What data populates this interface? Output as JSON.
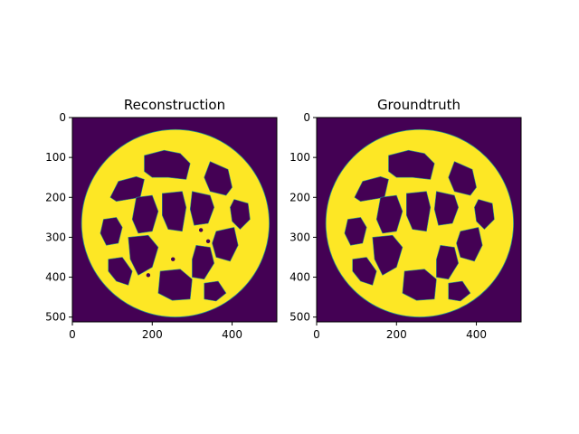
{
  "colors": {
    "background": "#440154",
    "foreground": "#fde725",
    "edge": "#21918c",
    "axis": "#000000"
  },
  "chart_data": [
    {
      "type": "heatmap",
      "title": "Reconstruction",
      "image_size": [
        512,
        512
      ],
      "xlim": [
        0,
        512
      ],
      "ylim": [
        512,
        0
      ],
      "xticks": [
        0,
        200,
        400
      ],
      "yticks": [
        0,
        100,
        200,
        300,
        400,
        500
      ],
      "colormap": "viridis",
      "values_shown": [
        0,
        1
      ],
      "object": {
        "shape": "wheel",
        "center": [
          258,
          265
        ],
        "outer_radius": 235,
        "rim_inner_radius": 205,
        "cells": [
          {
            "name": "cell-top-left",
            "points": [
              [
                95,
                200
              ],
              [
                115,
                160
              ],
              [
                160,
                148
              ],
              [
                180,
                155
              ],
              [
                170,
                200
              ],
              [
                140,
                205
              ],
              [
                110,
                210
              ]
            ]
          },
          {
            "name": "cell-top",
            "points": [
              [
                180,
                95
              ],
              [
                230,
                82
              ],
              [
                270,
                90
              ],
              [
                295,
                115
              ],
              [
                285,
                155
              ],
              [
                240,
                150
              ],
              [
                200,
                150
              ],
              [
                180,
                135
              ]
            ]
          },
          {
            "name": "cell-top-right",
            "points": [
              [
                345,
                110
              ],
              [
                390,
                130
              ],
              [
                400,
                175
              ],
              [
                385,
                195
              ],
              [
                345,
                185
              ],
              [
                330,
                150
              ]
            ]
          },
          {
            "name": "cell-right-top",
            "points": [
              [
                405,
                205
              ],
              [
                440,
                215
              ],
              [
                445,
                255
              ],
              [
                420,
                280
              ],
              [
                400,
                260
              ],
              [
                395,
                225
              ]
            ]
          },
          {
            "name": "cell-left",
            "points": [
              [
                78,
                255
              ],
              [
                110,
                250
              ],
              [
                125,
                275
              ],
              [
                115,
                315
              ],
              [
                85,
                320
              ],
              [
                70,
                290
              ]
            ]
          },
          {
            "name": "cell-center-left",
            "points": [
              [
                160,
                200
              ],
              [
                200,
                195
              ],
              [
                215,
                235
              ],
              [
                200,
                285
              ],
              [
                165,
                290
              ],
              [
                150,
                255
              ]
            ]
          },
          {
            "name": "cell-center",
            "points": [
              [
                225,
                190
              ],
              [
                275,
                185
              ],
              [
                285,
                225
              ],
              [
                275,
                285
              ],
              [
                240,
                280
              ],
              [
                225,
                245
              ]
            ]
          },
          {
            "name": "cell-center-right",
            "points": [
              [
                300,
                185
              ],
              [
                345,
                195
              ],
              [
                355,
                225
              ],
              [
                340,
                265
              ],
              [
                305,
                270
              ],
              [
                295,
                230
              ]
            ]
          },
          {
            "name": "cell-right",
            "points": [
              [
                360,
                285
              ],
              [
                405,
                275
              ],
              [
                415,
                320
              ],
              [
                395,
                360
              ],
              [
                360,
                350
              ],
              [
                350,
                315
              ]
            ]
          },
          {
            "name": "cell-bottom-left",
            "points": [
              [
                90,
                355
              ],
              [
                125,
                350
              ],
              [
                150,
                385
              ],
              [
                140,
                420
              ],
              [
                110,
                410
              ],
              [
                90,
                385
              ]
            ]
          },
          {
            "name": "cell-bottom-center-left",
            "points": [
              [
                140,
                300
              ],
              [
                190,
                295
              ],
              [
                215,
                325
              ],
              [
                200,
                375
              ],
              [
                165,
                395
              ],
              [
                145,
                355
              ]
            ]
          },
          {
            "name": "cell-bottom",
            "points": [
              [
                220,
                385
              ],
              [
                270,
                380
              ],
              [
                300,
                405
              ],
              [
                295,
                455
              ],
              [
                250,
                458
              ],
              [
                215,
                440
              ]
            ]
          },
          {
            "name": "cell-bottom-right",
            "points": [
              [
                310,
                320
              ],
              [
                345,
                325
              ],
              [
                355,
                365
              ],
              [
                330,
                405
              ],
              [
                300,
                400
              ],
              [
                300,
                355
              ]
            ]
          },
          {
            "name": "cell-bottom-far-right",
            "points": [
              [
                330,
                415
              ],
              [
                365,
                410
              ],
              [
                385,
                440
              ],
              [
                360,
                460
              ],
              [
                330,
                455
              ]
            ]
          }
        ],
        "artifacts": [
          [
            322,
            282
          ],
          [
            340,
            310
          ],
          [
            190,
            395
          ],
          [
            252,
            355
          ]
        ]
      }
    },
    {
      "type": "heatmap",
      "title": "Groundtruth",
      "image_size": [
        512,
        512
      ],
      "xlim": [
        0,
        512
      ],
      "ylim": [
        512,
        0
      ],
      "xticks": [
        0,
        200,
        400
      ],
      "yticks": [
        0,
        100,
        200,
        300,
        400,
        500
      ],
      "colormap": "viridis",
      "values_shown": [
        0,
        1
      ],
      "object": {
        "shape": "wheel",
        "center": [
          258,
          265
        ],
        "outer_radius": 235,
        "rim_inner_radius": 205,
        "cells": [
          {
            "name": "cell-top-left",
            "points": [
              [
                95,
                200
              ],
              [
                115,
                160
              ],
              [
                160,
                148
              ],
              [
                180,
                155
              ],
              [
                170,
                200
              ],
              [
                140,
                205
              ],
              [
                110,
                210
              ]
            ]
          },
          {
            "name": "cell-top",
            "points": [
              [
                180,
                95
              ],
              [
                230,
                82
              ],
              [
                270,
                90
              ],
              [
                295,
                115
              ],
              [
                285,
                155
              ],
              [
                240,
                150
              ],
              [
                200,
                150
              ],
              [
                180,
                135
              ]
            ]
          },
          {
            "name": "cell-top-right",
            "points": [
              [
                345,
                110
              ],
              [
                390,
                130
              ],
              [
                400,
                175
              ],
              [
                385,
                195
              ],
              [
                345,
                185
              ],
              [
                330,
                150
              ]
            ]
          },
          {
            "name": "cell-right-top",
            "points": [
              [
                405,
                205
              ],
              [
                440,
                215
              ],
              [
                445,
                255
              ],
              [
                420,
                280
              ],
              [
                400,
                260
              ],
              [
                395,
                225
              ]
            ]
          },
          {
            "name": "cell-left",
            "points": [
              [
                78,
                255
              ],
              [
                110,
                250
              ],
              [
                125,
                275
              ],
              [
                115,
                315
              ],
              [
                85,
                320
              ],
              [
                70,
                290
              ]
            ]
          },
          {
            "name": "cell-center-left",
            "points": [
              [
                160,
                200
              ],
              [
                200,
                195
              ],
              [
                215,
                235
              ],
              [
                200,
                285
              ],
              [
                165,
                290
              ],
              [
                150,
                255
              ]
            ]
          },
          {
            "name": "cell-center",
            "points": [
              [
                225,
                190
              ],
              [
                275,
                185
              ],
              [
                285,
                225
              ],
              [
                275,
                285
              ],
              [
                240,
                280
              ],
              [
                225,
                245
              ]
            ]
          },
          {
            "name": "cell-center-right",
            "points": [
              [
                300,
                185
              ],
              [
                345,
                195
              ],
              [
                355,
                225
              ],
              [
                340,
                265
              ],
              [
                305,
                270
              ],
              [
                295,
                230
              ]
            ]
          },
          {
            "name": "cell-right",
            "points": [
              [
                360,
                285
              ],
              [
                405,
                275
              ],
              [
                415,
                320
              ],
              [
                395,
                360
              ],
              [
                360,
                350
              ],
              [
                350,
                315
              ]
            ]
          },
          {
            "name": "cell-bottom-left",
            "points": [
              [
                90,
                355
              ],
              [
                125,
                350
              ],
              [
                150,
                385
              ],
              [
                140,
                420
              ],
              [
                110,
                410
              ],
              [
                90,
                385
              ]
            ]
          },
          {
            "name": "cell-bottom-center-left",
            "points": [
              [
                140,
                300
              ],
              [
                190,
                295
              ],
              [
                215,
                325
              ],
              [
                200,
                375
              ],
              [
                165,
                395
              ],
              [
                145,
                355
              ]
            ]
          },
          {
            "name": "cell-bottom",
            "points": [
              [
                220,
                385
              ],
              [
                270,
                380
              ],
              [
                300,
                405
              ],
              [
                295,
                455
              ],
              [
                250,
                458
              ],
              [
                215,
                440
              ]
            ]
          },
          {
            "name": "cell-bottom-right",
            "points": [
              [
                310,
                320
              ],
              [
                345,
                325
              ],
              [
                355,
                365
              ],
              [
                330,
                405
              ],
              [
                300,
                400
              ],
              [
                300,
                355
              ]
            ]
          },
          {
            "name": "cell-bottom-far-right",
            "points": [
              [
                330,
                415
              ],
              [
                365,
                410
              ],
              [
                385,
                440
              ],
              [
                360,
                460
              ],
              [
                330,
                455
              ]
            ]
          }
        ],
        "artifacts": []
      }
    }
  ]
}
